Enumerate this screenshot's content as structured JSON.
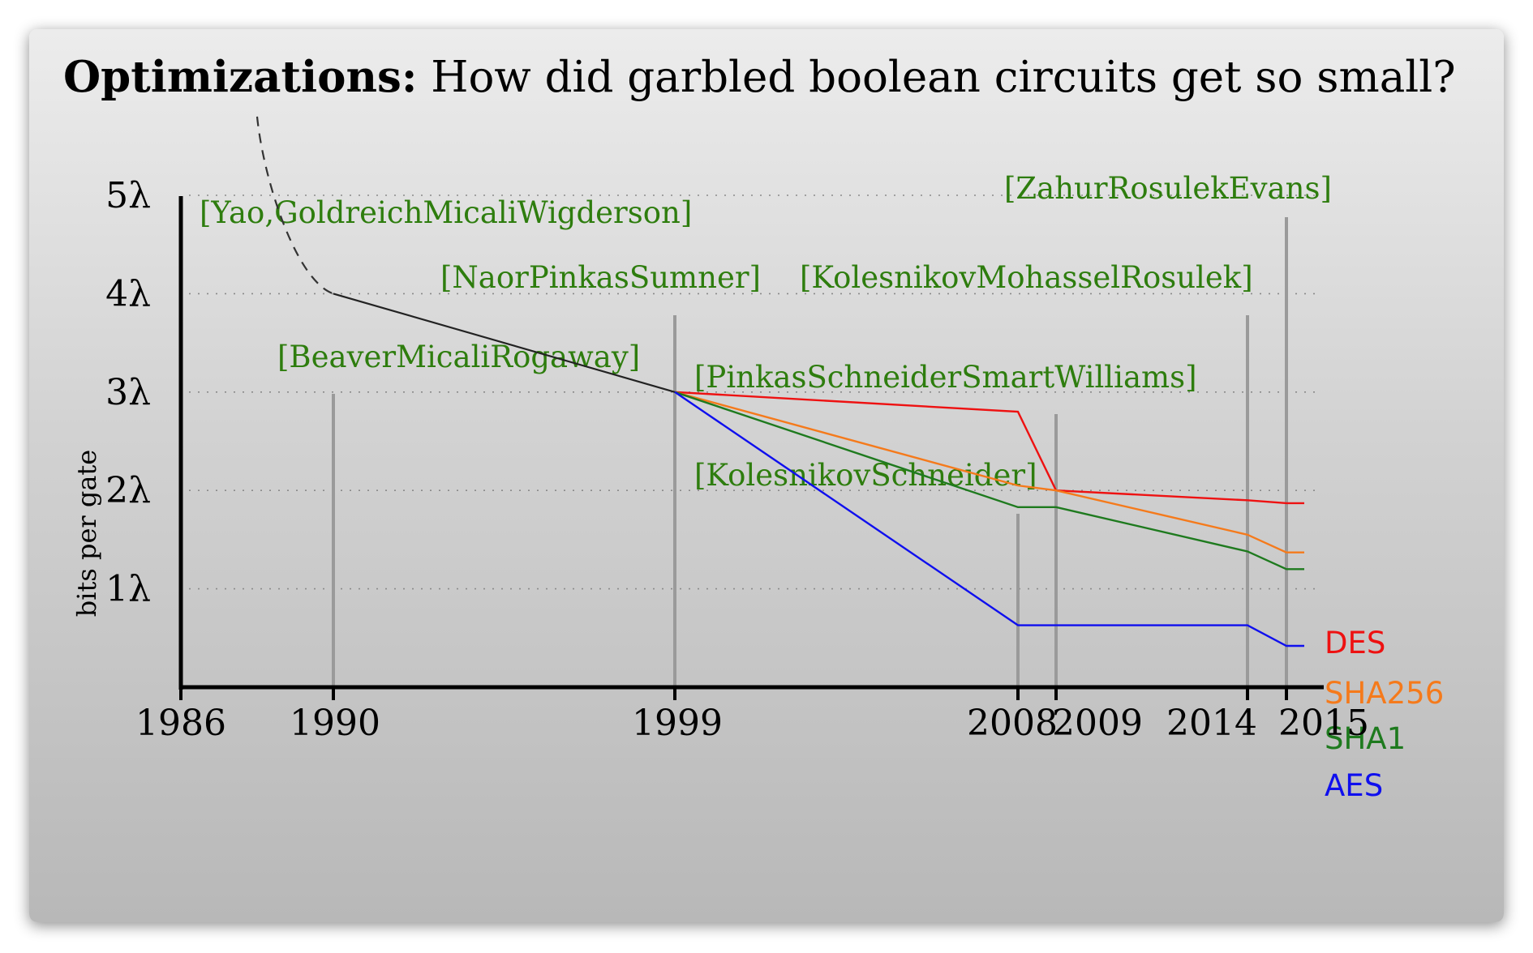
{
  "title": {
    "bold": "Optimizations:",
    "rest": "How did garbled boolean circuits get so small?"
  },
  "chart_data": {
    "type": "line",
    "ylabel": "bits per gate",
    "x_ticks": [
      "1986",
      "1990",
      "1999",
      "2008",
      "2009",
      "2014",
      "2015"
    ],
    "y_ticks": [
      "1λ",
      "2λ",
      "3λ",
      "4λ",
      "5λ"
    ],
    "ylim": [
      0,
      6
    ],
    "grid": "horizontal dotted",
    "legend": "labels at right end of each line",
    "citations": [
      {
        "year": "1990",
        "label": "[Yao,GoldreichMicaliWigderson]"
      },
      {
        "year": "1990",
        "label": "[BeaverMicaliRogaway]"
      },
      {
        "year": "1999",
        "label": "[NaorPinkasSumner]"
      },
      {
        "year": "2008",
        "label": "[KolesnikovSchneider]"
      },
      {
        "year": "2009",
        "label": "[PinkasSchneiderSmartWilliams]"
      },
      {
        "year": "2014",
        "label": "[KolesnikovMohasselRosulek]"
      },
      {
        "year": "2015",
        "label": "[ZahurRosulekEvans]"
      }
    ],
    "common_trend": {
      "x": [
        "1987.5",
        "1990",
        "1999"
      ],
      "y": [
        5.8,
        4.0,
        3.0
      ],
      "style": "dashed until 1990, solid after"
    },
    "series": [
      {
        "name": "DES",
        "color": "#ee1111",
        "x": [
          "1999",
          "2008",
          "2009",
          "2014",
          "2015"
        ],
        "y": [
          3.0,
          2.8,
          2.0,
          1.9,
          1.87
        ]
      },
      {
        "name": "SHA256",
        "color": "#f57a1b",
        "x": [
          "1999",
          "2008",
          "2009",
          "2014",
          "2015"
        ],
        "y": [
          3.0,
          2.05,
          2.0,
          1.55,
          1.37
        ]
      },
      {
        "name": "SHA1",
        "color": "#1e7a1e",
        "x": [
          "1999",
          "2008",
          "2009",
          "2014",
          "2015"
        ],
        "y": [
          3.0,
          1.83,
          1.83,
          1.38,
          1.2
        ]
      },
      {
        "name": "AES",
        "color": "#0f0fee",
        "x": [
          "1999",
          "2008",
          "2009",
          "2014",
          "2015"
        ],
        "y": [
          3.0,
          0.63,
          0.63,
          0.63,
          0.42
        ]
      }
    ]
  }
}
